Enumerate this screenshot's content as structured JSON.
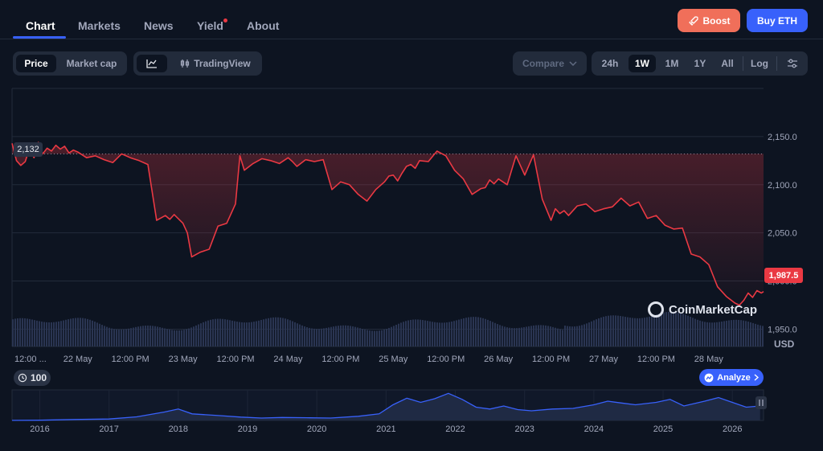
{
  "nav": {
    "tabs": [
      {
        "label": "Chart"
      },
      {
        "label": "Markets"
      },
      {
        "label": "News"
      },
      {
        "label": "Yield"
      },
      {
        "label": "About"
      }
    ],
    "boost_label": "Boost",
    "buy_label": "Buy ETH"
  },
  "toolbar": {
    "price_label": "Price",
    "marketcap_label": "Market cap",
    "tradingview_label": "TradingView",
    "compare_label": "Compare",
    "ranges": [
      "24h",
      "1W",
      "1M",
      "1Y",
      "All"
    ],
    "active_range": "1W",
    "log_label": "Log"
  },
  "tags": {
    "start_price": "2,132",
    "current_price": "1,987.5",
    "currency": "USD",
    "watermark": "CoinMarketCap",
    "zoom_count": "100",
    "analyze_label": "Analyze"
  },
  "colors": {
    "down": "#ea3943",
    "up": "#16c784",
    "accent": "#3861fb",
    "boost": "#f06f5a",
    "volume": "#2a3552",
    "navigator_line": "#3861fb"
  },
  "chart_data": {
    "type": "line",
    "y_ticks": [
      "2,150.0",
      "2,100.0",
      "2,050.0",
      "2,000.0",
      "1,950.0"
    ],
    "y_tick_values": [
      2150,
      2100,
      2050,
      2000,
      1950
    ],
    "ylim": [
      1932,
      2200
    ],
    "x_ticks": [
      "12:00 ...",
      "22 May",
      "12:00 PM",
      "23 May",
      "12:00 PM",
      "24 May",
      "12:00 PM",
      "25 May",
      "12:00 PM",
      "26 May",
      "12:00 PM",
      "27 May",
      "12:00 PM",
      "28 May"
    ],
    "x_tick_hours": [
      0,
      12,
      24,
      36,
      48,
      60,
      72,
      84,
      96,
      108,
      120,
      132,
      144,
      156
    ],
    "xlim_hours": [
      -3,
      168.5
    ],
    "reference_price": 2132,
    "series": [
      {
        "hours": [
          -3,
          -2,
          -1,
          0,
          1,
          2,
          3,
          4,
          5,
          6,
          7,
          8,
          9,
          10,
          11,
          12,
          14,
          16,
          18,
          20,
          22,
          24,
          26,
          28,
          30,
          32,
          33,
          34,
          36,
          37,
          38,
          40,
          42,
          44,
          46,
          48,
          49,
          50,
          52,
          54,
          56,
          58,
          60,
          61,
          62,
          64,
          66,
          68,
          70,
          72,
          74,
          76,
          78,
          80,
          82,
          83,
          84,
          85,
          86,
          87,
          88,
          89,
          90,
          92,
          94,
          96,
          98,
          100,
          102,
          104,
          105,
          106,
          107,
          108,
          110,
          112,
          114,
          116,
          118,
          120,
          121,
          122,
          123,
          124,
          126,
          128,
          130,
          132,
          134,
          136,
          138,
          140,
          142,
          144,
          146,
          148,
          150,
          152,
          154,
          156,
          158,
          160,
          162,
          163,
          164,
          165,
          166,
          167,
          168,
          168.5
        ],
        "values": [
          2143,
          2125,
          2120,
          2124,
          2138,
          2128,
          2144,
          2132,
          2138,
          2135,
          2141,
          2137,
          2140,
          2133,
          2136,
          2134,
          2128,
          2130,
          2126,
          2123,
          2132,
          2128,
          2125,
          2121,
          2063,
          2068,
          2064,
          2069,
          2060,
          2050,
          2025,
          2030,
          2033,
          2057,
          2060,
          2080,
          2130,
          2115,
          2122,
          2127,
          2125,
          2122,
          2128,
          2124,
          2119,
          2126,
          2124,
          2126,
          2095,
          2103,
          2100,
          2090,
          2083,
          2095,
          2103,
          2109,
          2110,
          2104,
          2112,
          2119,
          2121,
          2117,
          2125,
          2124,
          2135,
          2130,
          2115,
          2106,
          2090,
          2096,
          2097,
          2105,
          2101,
          2106,
          2100,
          2130,
          2110,
          2131,
          2085,
          2063,
          2075,
          2070,
          2073,
          2068,
          2078,
          2080,
          2072,
          2075,
          2077,
          2086,
          2078,
          2082,
          2065,
          2068,
          2058,
          2054,
          2055,
          2028,
          2025,
          2017,
          1994,
          1984,
          1977,
          1975,
          1980,
          1987.5,
          1983,
          1990,
          1987.5,
          1989
        ]
      }
    ],
    "navigator": {
      "x_ticks": [
        "2016",
        "2017",
        "2018",
        "2019",
        "2020",
        "2021",
        "2022",
        "2023",
        "2024",
        "2025",
        "2026"
      ],
      "years": [
        2015.6,
        2016.0,
        2016.5,
        2017.0,
        2017.4,
        2017.8,
        2018.0,
        2018.2,
        2018.6,
        2018.9,
        2019.2,
        2019.5,
        2019.9,
        2020.2,
        2020.6,
        2020.9,
        2021.1,
        2021.3,
        2021.5,
        2021.7,
        2021.9,
        2022.1,
        2022.3,
        2022.5,
        2022.7,
        2022.9,
        2023.1,
        2023.4,
        2023.7,
        2024.0,
        2024.2,
        2024.4,
        2024.6,
        2024.9,
        2025.1,
        2025.3,
        2025.6,
        2025.8,
        2026.0,
        2026.2,
        2026.4
      ],
      "values": [
        1,
        2,
        8,
        12,
        30,
        70,
        95,
        55,
        40,
        28,
        20,
        25,
        22,
        20,
        35,
        55,
        130,
        185,
        150,
        180,
        225,
        175,
        110,
        95,
        120,
        90,
        80,
        95,
        100,
        130,
        160,
        145,
        130,
        150,
        175,
        120,
        160,
        190,
        150,
        110,
        120
      ]
    }
  }
}
